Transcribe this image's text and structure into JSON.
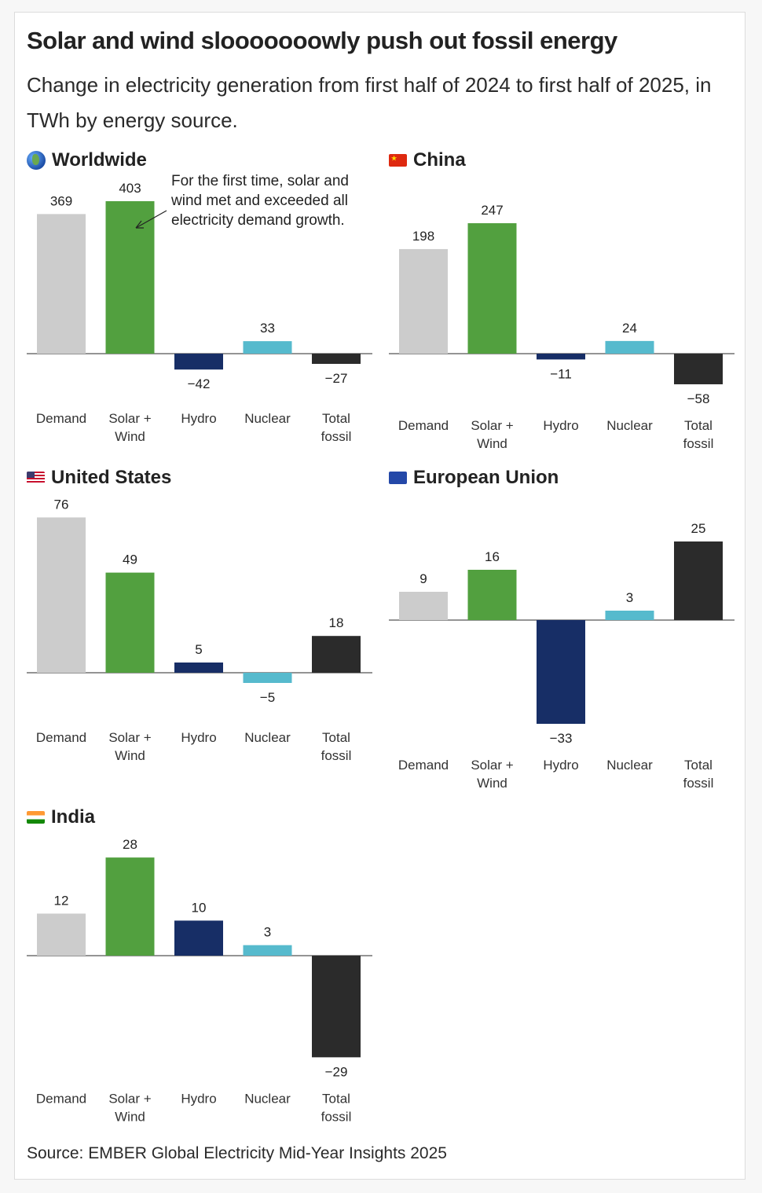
{
  "title": "Solar and wind slooooooowly push out fossil energy",
  "subtitle": "Change in electricity generation from first half of 2024 to first half of 2025, in TWh by energy source.",
  "source": "Source: EMBER Global Electricity Mid-Year Insights 2025",
  "colors": {
    "Demand": "#cccccc",
    "Solar + Wind": "#52a03f",
    "Hydro": "#172e66",
    "Nuclear": "#56bacd",
    "Total fossil": "#2b2b2b",
    "baseline": "#555555"
  },
  "chart_data": [
    {
      "type": "bar",
      "title": "Worldwide",
      "icon": "globe-icon",
      "categories": [
        "Demand",
        "Solar + Wind",
        "Hydro",
        "Nuclear",
        "Total fossil"
      ],
      "category_lines": [
        [
          "Demand"
        ],
        [
          "Solar +",
          "Wind"
        ],
        [
          "Hydro"
        ],
        [
          "Nuclear"
        ],
        [
          "Total",
          "fossil"
        ]
      ],
      "values": [
        369,
        403,
        -42,
        33,
        -27
      ],
      "labels": [
        "369",
        "403",
        "−42",
        "33",
        "−27"
      ],
      "annotation": "For the first time, solar and wind met and exceeded all electricity demand growth.",
      "annotation_target": "Solar + Wind",
      "xlabel": "",
      "ylabel": "TWh"
    },
    {
      "type": "bar",
      "title": "China",
      "icon": "china-flag-icon",
      "categories": [
        "Demand",
        "Solar + Wind",
        "Hydro",
        "Nuclear",
        "Total fossil"
      ],
      "category_lines": [
        [
          "Demand"
        ],
        [
          "Solar +",
          "Wind"
        ],
        [
          "Hydro"
        ],
        [
          "Nuclear"
        ],
        [
          "Total",
          "fossil"
        ]
      ],
      "values": [
        198,
        247,
        -11,
        24,
        -58
      ],
      "labels": [
        "198",
        "247",
        "−11",
        "24",
        "−58"
      ],
      "xlabel": "",
      "ylabel": "TWh"
    },
    {
      "type": "bar",
      "title": "United States",
      "icon": "us-flag-icon",
      "categories": [
        "Demand",
        "Solar + Wind",
        "Hydro",
        "Nuclear",
        "Total fossil"
      ],
      "category_lines": [
        [
          "Demand"
        ],
        [
          "Solar +",
          "Wind"
        ],
        [
          "Hydro"
        ],
        [
          "Nuclear"
        ],
        [
          "Total",
          "fossil"
        ]
      ],
      "values": [
        76,
        49,
        5,
        -5,
        18
      ],
      "labels": [
        "76",
        "49",
        "5",
        "−5",
        "18"
      ],
      "xlabel": "",
      "ylabel": "TWh"
    },
    {
      "type": "bar",
      "title": "European Union",
      "icon": "eu-flag-icon",
      "categories": [
        "Demand",
        "Solar + Wind",
        "Hydro",
        "Nuclear",
        "Total fossil"
      ],
      "category_lines": [
        [
          "Demand"
        ],
        [
          "Solar +",
          "Wind"
        ],
        [
          "Hydro"
        ],
        [
          "Nuclear"
        ],
        [
          "Total",
          "fossil"
        ]
      ],
      "values": [
        9,
        16,
        -33,
        3,
        25
      ],
      "labels": [
        "9",
        "16",
        "−33",
        "3",
        "25"
      ],
      "xlabel": "",
      "ylabel": "TWh"
    },
    {
      "type": "bar",
      "title": "India",
      "icon": "india-flag-icon",
      "categories": [
        "Demand",
        "Solar + Wind",
        "Hydro",
        "Nuclear",
        "Total fossil"
      ],
      "category_lines": [
        [
          "Demand"
        ],
        [
          "Solar +",
          "Wind"
        ],
        [
          "Hydro"
        ],
        [
          "Nuclear"
        ],
        [
          "Total",
          "fossil"
        ]
      ],
      "values": [
        12,
        28,
        10,
        3,
        -29
      ],
      "labels": [
        "12",
        "28",
        "10",
        "3",
        "−29"
      ],
      "xlabel": "",
      "ylabel": "TWh"
    }
  ]
}
